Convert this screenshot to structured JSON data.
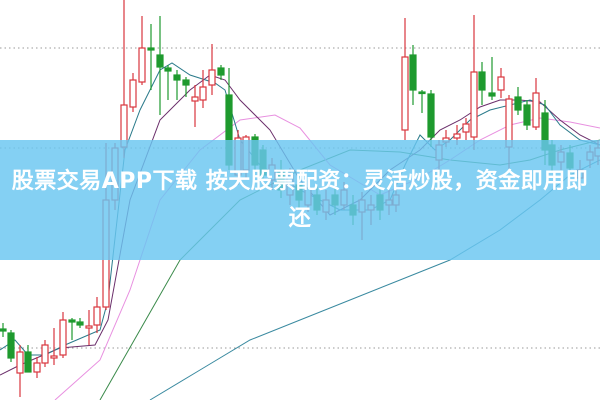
{
  "banner": {
    "title": "股票交易APP下载 按天股票配资：灵活炒股，资金即用即还"
  },
  "colors": {
    "banner_bg": "#69c6f0",
    "rise_candle": "#d9363e",
    "fall_candle": "#1e9a2e",
    "ma_short": "#2a7a8a",
    "ma_mid": "#6b2f6b",
    "ma_pink": "#e890e0",
    "ma_green": "#3a8a4a",
    "ma_long": "#3a8aa0"
  },
  "chart_type": "candlestick with moving averages"
}
